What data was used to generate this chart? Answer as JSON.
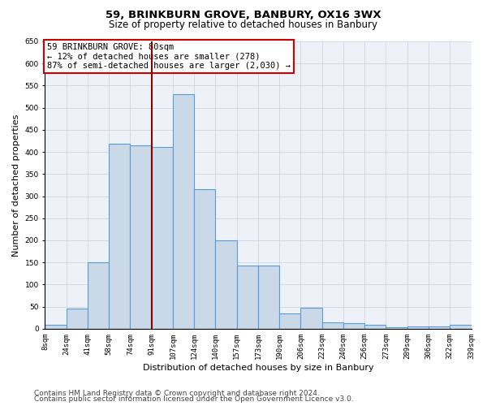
{
  "title": "59, BRINKBURN GROVE, BANBURY, OX16 3WX",
  "subtitle": "Size of property relative to detached houses in Banbury",
  "xlabel": "Distribution of detached houses by size in Banbury",
  "ylabel": "Number of detached properties",
  "bar_values": [
    8,
    46,
    150,
    418,
    415,
    412,
    530,
    315,
    200,
    143,
    143,
    35,
    48,
    15,
    13,
    8,
    3,
    5,
    5,
    8
  ],
  "bar_labels": [
    "8sqm",
    "24sqm",
    "41sqm",
    "58sqm",
    "74sqm",
    "91sqm",
    "107sqm",
    "124sqm",
    "140sqm",
    "157sqm",
    "173sqm",
    "190sqm",
    "206sqm",
    "223sqm",
    "240sqm",
    "256sqm",
    "273sqm",
    "289sqm",
    "306sqm",
    "322sqm",
    "339sqm"
  ],
  "bar_color": "#c9d9e8",
  "bar_edgecolor": "#5b9bd5",
  "bar_linewidth": 0.8,
  "annotation_line1": "59 BRINKBURN GROVE: 80sqm",
  "annotation_line2": "← 12% of detached houses are smaller (278)",
  "annotation_line3": "87% of semi-detached houses are larger (2,030) →",
  "annotation_box_color": "#cc0000",
  "vline_x": 4.5,
  "vline_color": "#8b0000",
  "vline_linewidth": 1.5,
  "ylim": [
    0,
    650
  ],
  "yticks": [
    0,
    50,
    100,
    150,
    200,
    250,
    300,
    350,
    400,
    450,
    500,
    550,
    600,
    650
  ],
  "grid_color": "#c8d0dc",
  "bg_color": "#eef2f8",
  "footer_line1": "Contains HM Land Registry data © Crown copyright and database right 2024.",
  "footer_line2": "Contains public sector information licensed under the Open Government Licence v3.0.",
  "title_fontsize": 9.5,
  "subtitle_fontsize": 8.5,
  "xlabel_fontsize": 8,
  "ylabel_fontsize": 8,
  "tick_fontsize": 6.5,
  "annotation_fontsize": 7.5,
  "footer_fontsize": 6.5
}
